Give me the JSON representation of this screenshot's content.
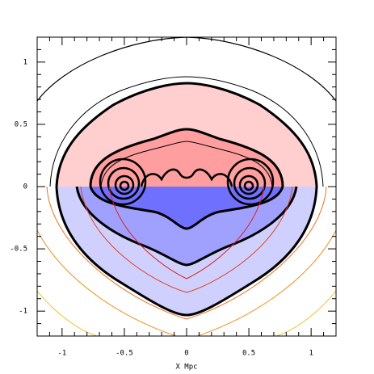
{
  "chart_data": {
    "type": "contour",
    "xlabel": "X Mpc",
    "xlim": [
      -1.2,
      1.2
    ],
    "ylim": [
      -1.2,
      1.2
    ],
    "xticks": [
      -1,
      -0.5,
      0,
      0.5,
      1
    ],
    "yticks": [
      -1,
      -0.5,
      0,
      0.5,
      1
    ],
    "minor_ticks": [
      -1.2,
      -1.1,
      -0.9,
      -0.8,
      -0.7,
      -0.6,
      -0.4,
      -0.3,
      -0.2,
      -0.1,
      0.1,
      0.2,
      0.3,
      0.4,
      0.6,
      0.7,
      0.8,
      0.9,
      1.1,
      1.2
    ]
  }
}
